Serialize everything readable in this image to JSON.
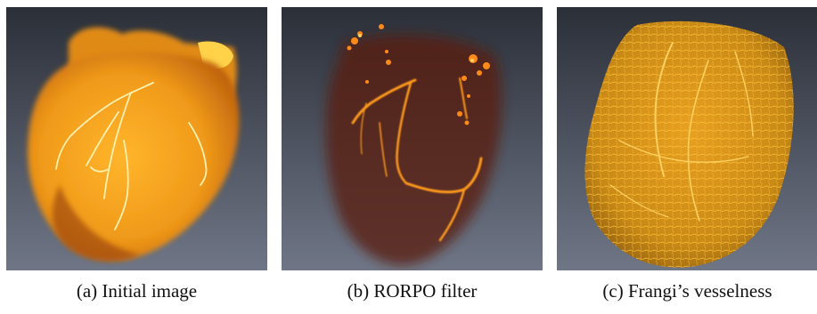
{
  "figure": {
    "panels": [
      {
        "caption": "(a) Initial image",
        "render": "initial-heart-volume",
        "colors": {
          "bg_top": "#2b2f38",
          "bg_bottom": "#6f7686",
          "tissue": "#f0a21e",
          "highlight": "#ffd24a",
          "vessel": "#fff1b0"
        }
      },
      {
        "caption": "(b) RORPO filter",
        "render": "rorpo-filtered-vessels",
        "colors": {
          "bg_top": "#2b2f38",
          "bg_bottom": "#6f7686",
          "haze": "#5a1a10",
          "vessel": "#ff9a1a",
          "bright": "#ffd060"
        }
      },
      {
        "caption": "(c) Frangi’s vesselness",
        "render": "frangi-vesselness-volume",
        "colors": {
          "bg_top": "#2b2f38",
          "bg_bottom": "#6f7686",
          "tissue": "#c98a16",
          "vessel": "#ffc43a"
        }
      }
    ]
  }
}
